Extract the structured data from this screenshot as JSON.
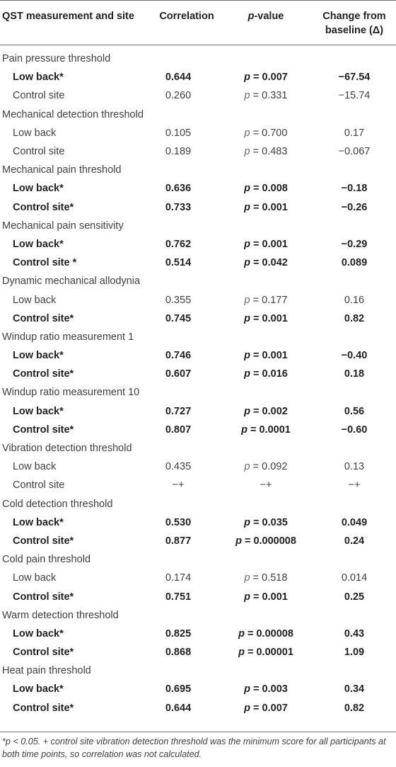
{
  "header": {
    "col1": "QST measurement and site",
    "col2": "Correlation",
    "col3_italic": "p",
    "col3_rest": "-value",
    "col4_line1": "Change from",
    "col4_line2": "baseline (Δ)"
  },
  "rows": [
    {
      "type": "group",
      "label": "Pain pressure threshold"
    },
    {
      "type": "row",
      "sig": true,
      "label": "Low back*",
      "corr": "0.644",
      "p": "p",
      "pv": " = 0.007",
      "chg": "−67.54"
    },
    {
      "type": "row",
      "sig": false,
      "label": "Control site",
      "corr": "0.260",
      "p": "p",
      "pv": " = 0.331",
      "chg": "−15.74"
    },
    {
      "type": "group",
      "label": "Mechanical detection threshold"
    },
    {
      "type": "row",
      "sig": false,
      "label": "Low back",
      "corr": "0.105",
      "p": "p",
      "pv": " = 0.700",
      "chg": "0.17"
    },
    {
      "type": "row",
      "sig": false,
      "label": "Control site",
      "corr": "0.189",
      "p": "p",
      "pv": " = 0.483",
      "chg": "−0.067"
    },
    {
      "type": "group",
      "label": "Mechanical pain threshold"
    },
    {
      "type": "row",
      "sig": true,
      "label": "Low back*",
      "corr": "0.636",
      "p": "p",
      "pv": " = 0.008",
      "chg": "−0.18"
    },
    {
      "type": "row",
      "sig": true,
      "label": "Control site*",
      "corr": "0.733",
      "p": "p",
      "pv": " = 0.001",
      "chg": "−0.26"
    },
    {
      "type": "group",
      "label": "Mechanical pain sensitivity"
    },
    {
      "type": "row",
      "sig": true,
      "label": "Low back*",
      "corr": "0.762",
      "p": "p",
      "pv": " = 0.001",
      "chg": "−0.29"
    },
    {
      "type": "row",
      "sig": true,
      "label": "Control site *",
      "corr": "0.514",
      "p": "p",
      "pv": " = 0.042",
      "chg": "0.089"
    },
    {
      "type": "group",
      "label": "Dynamic mechanical allodynia"
    },
    {
      "type": "row",
      "sig": false,
      "label": "Low back",
      "corr": "0.355",
      "p": "p",
      "pv": " = 0.177",
      "chg": "0.16"
    },
    {
      "type": "row",
      "sig": true,
      "label": "Control site*",
      "corr": "0.745",
      "p": "p",
      "pv": " = 0.001",
      "chg": "0.82"
    },
    {
      "type": "group",
      "label": "Windup ratio measurement 1"
    },
    {
      "type": "row",
      "sig": true,
      "label": "Low back*",
      "corr": "0.746",
      "p": "p",
      "pv": " = 0.001",
      "chg": "−0.40"
    },
    {
      "type": "row",
      "sig": true,
      "label": "Control site*",
      "corr": "0.607",
      "p": "p",
      "pv": " = 0.016",
      "chg": "0.18"
    },
    {
      "type": "group",
      "label": "Windup ratio measurement 10"
    },
    {
      "type": "row",
      "sig": true,
      "label": "Low back*",
      "corr": "0.727",
      "p": "p",
      "pv": " = 0.002",
      "chg": "0.56"
    },
    {
      "type": "row",
      "sig": true,
      "label": "Control site*",
      "corr": "0.807",
      "p": "p",
      "pv": " = 0.0001",
      "chg": "−0.60"
    },
    {
      "type": "group",
      "label": "Vibration detection threshold"
    },
    {
      "type": "row",
      "sig": false,
      "label": "Low back",
      "corr": "0.435",
      "p": "p",
      "pv": " = 0.092",
      "chg": "0.13"
    },
    {
      "type": "row",
      "sig": false,
      "label": "Control site",
      "corr": "−+",
      "p": "",
      "pv": "−+",
      "chg": "−+"
    },
    {
      "type": "group",
      "label": "Cold detection threshold"
    },
    {
      "type": "row",
      "sig": true,
      "label": "Low back*",
      "corr": "0.530",
      "p": "p",
      "pv": " = 0.035",
      "chg": "0.049"
    },
    {
      "type": "row",
      "sig": true,
      "label": "Control site*",
      "corr": "0.877",
      "p": "p",
      "pv": " = 0.000008",
      "chg": "0.24"
    },
    {
      "type": "group",
      "label": "Cold pain threshold"
    },
    {
      "type": "row",
      "sig": false,
      "label": "Low back",
      "corr": "0.174",
      "p": "p",
      "pv": " = 0.518",
      "chg": "0.014"
    },
    {
      "type": "row",
      "sig": true,
      "label": "Control site*",
      "corr": "0.751",
      "p": "p",
      "pv": " = 0.001",
      "chg": "0.25"
    },
    {
      "type": "group",
      "label": "Warm detection threshold"
    },
    {
      "type": "row",
      "sig": true,
      "label": "Low back*",
      "corr": "0.825",
      "p": "p",
      "pv": " = 0.00008",
      "chg": "0.43"
    },
    {
      "type": "row",
      "sig": true,
      "label": "Control site*",
      "corr": "0.868",
      "p": "p",
      "pv": " = 0.00001",
      "chg": "1.09"
    },
    {
      "type": "group",
      "label": "Heat pain threshold"
    },
    {
      "type": "row",
      "sig": true,
      "label": "Low back*",
      "corr": "0.695",
      "p": "p",
      "pv": " = 0.003",
      "chg": "0.34"
    },
    {
      "type": "row",
      "sig": true,
      "label": "Control site*",
      "corr": "0.644",
      "p": "p",
      "pv": " = 0.007",
      "chg": "0.82"
    }
  ],
  "footnote": "*p < 0.05. + control site vibration detection threshold was the minimum score for all participants at both time points, so correlation was not calculated."
}
